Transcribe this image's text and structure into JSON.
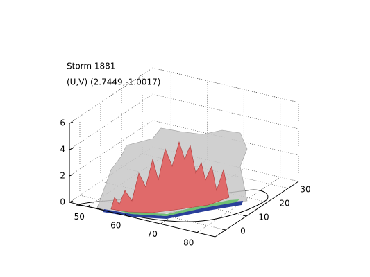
{
  "chart_data": {
    "type": "surface3d",
    "title": "Storm 1881",
    "subtitle": "(U,V) (2.7449,-1.0017)",
    "xlim": [
      45,
      85
    ],
    "xticks": [
      50,
      60,
      70,
      80
    ],
    "ylim": [
      -5,
      35
    ],
    "yticks": [
      0,
      10,
      20,
      30
    ],
    "zlim": [
      0,
      6
    ],
    "zticks": [
      0,
      2,
      4,
      6
    ],
    "grid": true
  }
}
